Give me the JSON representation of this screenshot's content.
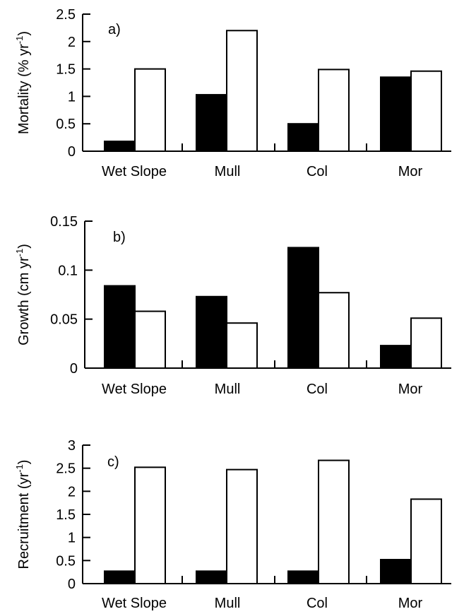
{
  "chart_data": [
    {
      "type": "bar",
      "panel_label": "a)",
      "ylabel": {
        "main": "Mortality (% yr",
        "sup": "-1",
        "end": ")"
      },
      "categories": [
        "Wet Slope",
        "Mull",
        "Col",
        "Mor"
      ],
      "series": [
        {
          "color": "#000000",
          "values": [
            0.18,
            1.03,
            0.5,
            1.35
          ]
        },
        {
          "color": "#ffffff",
          "values": [
            1.5,
            2.2,
            1.49,
            1.46
          ]
        }
      ],
      "ylim": [
        0,
        2.5
      ],
      "yticks": [
        0,
        0.5,
        1,
        1.5,
        2,
        2.5
      ],
      "ytick_labels": [
        "0",
        "0.5",
        "1",
        "1.5",
        "2",
        "2.5"
      ],
      "grid": false
    },
    {
      "type": "bar",
      "panel_label": "b)",
      "ylabel": {
        "main": "Growth (cm yr",
        "sup": "-1",
        "end": ")"
      },
      "categories": [
        "Wet Slope",
        "Mull",
        "Col",
        "Mor"
      ],
      "series": [
        {
          "color": "#000000",
          "values": [
            0.084,
            0.073,
            0.123,
            0.023
          ]
        },
        {
          "color": "#ffffff",
          "values": [
            0.058,
            0.046,
            0.077,
            0.051
          ]
        }
      ],
      "ylim": [
        0,
        0.15
      ],
      "yticks": [
        0,
        0.05,
        0.1,
        0.15
      ],
      "ytick_labels": [
        "0",
        "0.05",
        "0.1",
        "0.15"
      ],
      "grid": false
    },
    {
      "type": "bar",
      "panel_label": "c)",
      "ylabel": {
        "main": "Recruitment (yr",
        "sup": "-1",
        "end": ")"
      },
      "categories": [
        "Wet Slope",
        "Mull",
        "Col",
        "Mor"
      ],
      "series": [
        {
          "color": "#000000",
          "values": [
            0.27,
            0.27,
            0.27,
            0.52
          ]
        },
        {
          "color": "#ffffff",
          "values": [
            2.52,
            2.47,
            2.67,
            1.83
          ]
        }
      ],
      "ylim": [
        0,
        3
      ],
      "yticks": [
        0,
        0.5,
        1,
        1.5,
        2,
        2.5,
        3
      ],
      "ytick_labels": [
        "0",
        "0.5",
        "1",
        "1.5",
        "2",
        "2.5",
        "3"
      ],
      "grid": false
    }
  ]
}
